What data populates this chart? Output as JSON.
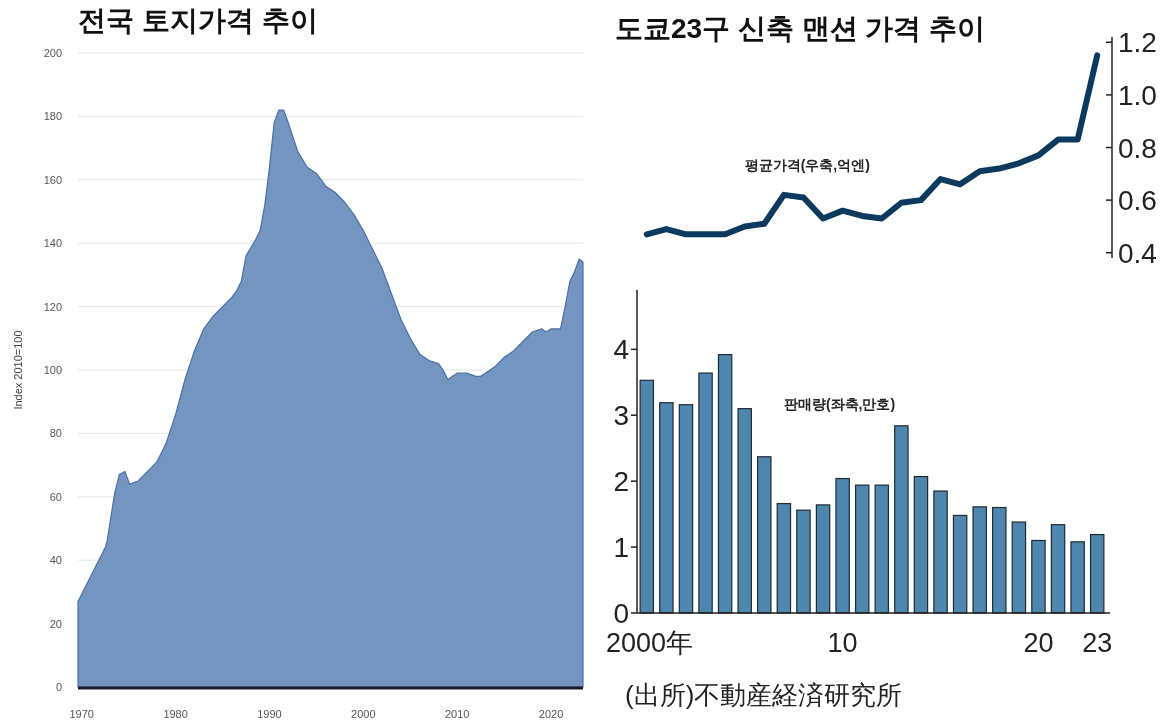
{
  "chart_data": [
    {
      "type": "area",
      "title": "전국 토지가격 추이",
      "ylabel": "Index 2010=100",
      "color": "#7395bf",
      "xlim": [
        1969.6,
        2023.4
      ],
      "ylim": [
        0,
        200
      ],
      "yticks": [
        0,
        20,
        40,
        60,
        80,
        100,
        120,
        140,
        160,
        180,
        200
      ],
      "xticks": [
        1970,
        1980,
        1990,
        2000,
        2010,
        2020
      ],
      "grid": "y",
      "x": [
        1969.6,
        1972.5,
        1972.7,
        1973.5,
        1974,
        1974.6,
        1975.1,
        1976,
        1977,
        1978,
        1979,
        1980,
        1981,
        1982,
        1983,
        1984,
        1985,
        1986,
        1986.5,
        1987,
        1987.5,
        1988.5,
        1989,
        1989.5,
        1990,
        1990.5,
        1991,
        1991.5,
        1992,
        1993,
        1994,
        1995,
        1996,
        1997,
        1998,
        1999,
        2000,
        2001,
        2002,
        2003,
        2004,
        2005,
        2006,
        2007,
        2008,
        2008.5,
        2009,
        2009.5,
        2010,
        2011,
        2012,
        2012.5,
        2013,
        2014,
        2015,
        2016,
        2017,
        2018,
        2019,
        2019.5,
        2020,
        2021,
        2021.5,
        2022,
        2022.5,
        2023,
        2023.4
      ],
      "values": [
        27,
        44,
        46,
        61,
        67,
        68,
        64,
        65,
        68,
        71,
        77,
        86,
        97,
        106,
        113,
        117,
        120,
        123,
        125,
        128,
        136,
        141,
        144,
        152,
        164,
        178,
        182,
        182,
        178,
        169,
        164,
        162,
        158,
        156,
        153,
        149,
        144,
        138,
        132,
        124,
        116,
        110,
        105,
        103,
        102,
        100,
        97,
        98,
        99,
        99,
        98,
        98,
        99,
        101,
        104,
        106,
        109,
        112,
        113,
        112,
        113,
        113,
        120,
        128,
        131,
        135,
        134
      ]
    },
    {
      "type": "line",
      "title": "도쿄23구 신축 맨션 가격 추이",
      "tick_labels": "y",
      "categories": [
        null,
        null,
        null,
        null,
        null,
        null,
        null,
        null,
        null,
        null,
        null,
        null,
        null,
        null,
        null,
        null,
        null,
        null,
        null,
        null,
        null,
        null,
        null,
        null
      ],
      "series": [
        {
          "name": "평균가격(우축,억엔)",
          "color": "#0b3a5e",
          "values": [
            0.47,
            0.49,
            0.47,
            0.47,
            0.47,
            0.5,
            0.51,
            0.62,
            0.61,
            0.53,
            0.56,
            0.54,
            0.53,
            0.59,
            0.6,
            0.68,
            0.66,
            0.71,
            0.72,
            0.74,
            0.77,
            0.83,
            0.83,
            1.15
          ]
        }
      ],
      "ylim": [
        0.38,
        1.22
      ],
      "yticks": [
        0.4,
        0.6,
        0.8,
        {
          "value": 1,
          "label": "1.0"
        },
        1.2
      ]
    },
    {
      "type": "bar",
      "categories": [
        "2000年",
        null,
        null,
        null,
        null,
        null,
        null,
        null,
        null,
        null,
        "10",
        null,
        null,
        null,
        null,
        null,
        null,
        null,
        null,
        null,
        "20",
        null,
        null,
        "23"
      ],
      "series": [
        {
          "name": "판매량(좌축,만호)",
          "color": "#4f86ad",
          "values": [
            3.53,
            3.19,
            3.16,
            3.64,
            3.92,
            3.1,
            2.37,
            1.66,
            1.56,
            1.64,
            2.04,
            1.94,
            1.94,
            2.84,
            2.07,
            1.85,
            1.48,
            1.61,
            1.6,
            1.38,
            1.1,
            1.34,
            1.08,
            1.19
          ]
        }
      ],
      "ylim": [
        0,
        4.9
      ],
      "yticks": [
        0,
        1,
        2,
        3,
        4
      ],
      "annotations": [
        "(出所)不動産経済研究所"
      ]
    }
  ]
}
